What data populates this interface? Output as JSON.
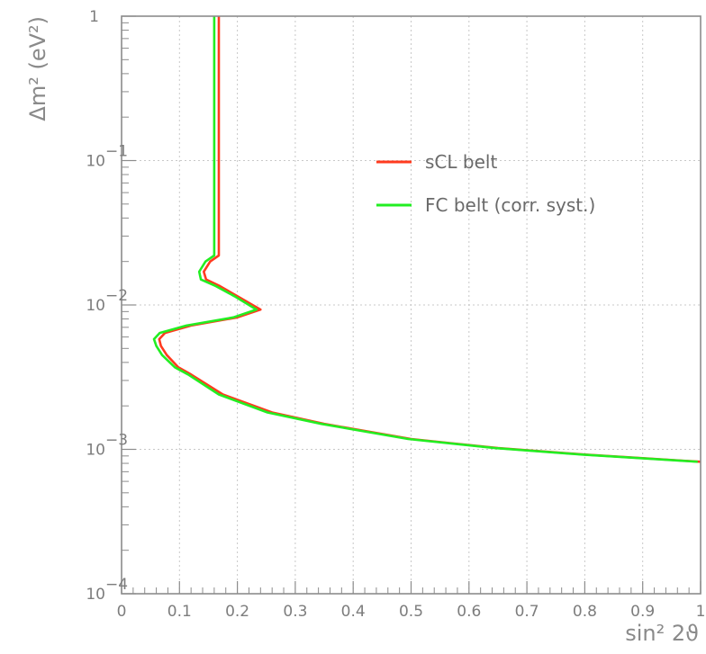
{
  "chart_data": {
    "type": "line",
    "xlabel": "sin² 2ϑ",
    "ylabel": "Δm² (eV²)",
    "xlim": [
      0,
      1
    ],
    "ylim": [
      0.0001,
      1
    ],
    "y_scale": "log",
    "grid": true,
    "legend_position": "top-right",
    "x_ticks": [
      "0",
      "0.1",
      "0.2",
      "0.3",
      "0.4",
      "0.5",
      "0.6",
      "0.7",
      "0.8",
      "0.9",
      "1"
    ],
    "y_ticks": [
      {
        "value": 1,
        "base": "1",
        "exp": ""
      },
      {
        "value": 0.1,
        "base": "10",
        "exp": "−1"
      },
      {
        "value": 0.01,
        "base": "10",
        "exp": "−2"
      },
      {
        "value": 0.001,
        "base": "10",
        "exp": "−3"
      },
      {
        "value": 0.0001,
        "base": "10",
        "exp": "−4"
      }
    ],
    "series": [
      {
        "name": "sCL belt",
        "color": "#ff3b1f",
        "points": [
          [
            0.168,
            1
          ],
          [
            0.168,
            0.1
          ],
          [
            0.168,
            0.022
          ],
          [
            0.153,
            0.02
          ],
          [
            0.142,
            0.017
          ],
          [
            0.146,
            0.015
          ],
          [
            0.17,
            0.0135
          ],
          [
            0.2,
            0.0115
          ],
          [
            0.24,
            0.0093
          ],
          [
            0.2,
            0.0082
          ],
          [
            0.12,
            0.0072
          ],
          [
            0.075,
            0.0064
          ],
          [
            0.065,
            0.0058
          ],
          [
            0.068,
            0.0052
          ],
          [
            0.078,
            0.0045
          ],
          [
            0.098,
            0.0037
          ],
          [
            0.12,
            0.0033
          ],
          [
            0.175,
            0.0024
          ],
          [
            0.26,
            0.0018
          ],
          [
            0.35,
            0.0015
          ],
          [
            0.5,
            0.00118
          ],
          [
            0.65,
            0.00102
          ],
          [
            0.8,
            0.00092
          ],
          [
            1.0,
            0.00082
          ]
        ]
      },
      {
        "name": "FC belt (corr. syst.)",
        "color": "#22ee22",
        "points": [
          [
            0.16,
            1
          ],
          [
            0.16,
            0.1
          ],
          [
            0.16,
            0.022
          ],
          [
            0.145,
            0.02
          ],
          [
            0.134,
            0.017
          ],
          [
            0.137,
            0.015
          ],
          [
            0.163,
            0.0135
          ],
          [
            0.195,
            0.0115
          ],
          [
            0.233,
            0.0093
          ],
          [
            0.193,
            0.0082
          ],
          [
            0.112,
            0.0072
          ],
          [
            0.066,
            0.0064
          ],
          [
            0.056,
            0.0058
          ],
          [
            0.06,
            0.0052
          ],
          [
            0.07,
            0.0045
          ],
          [
            0.092,
            0.0037
          ],
          [
            0.115,
            0.0033
          ],
          [
            0.168,
            0.0024
          ],
          [
            0.252,
            0.0018
          ],
          [
            0.345,
            0.0015
          ],
          [
            0.495,
            0.00118
          ],
          [
            0.645,
            0.00102
          ],
          [
            0.795,
            0.00092
          ],
          [
            0.995,
            0.00082
          ]
        ]
      }
    ]
  }
}
